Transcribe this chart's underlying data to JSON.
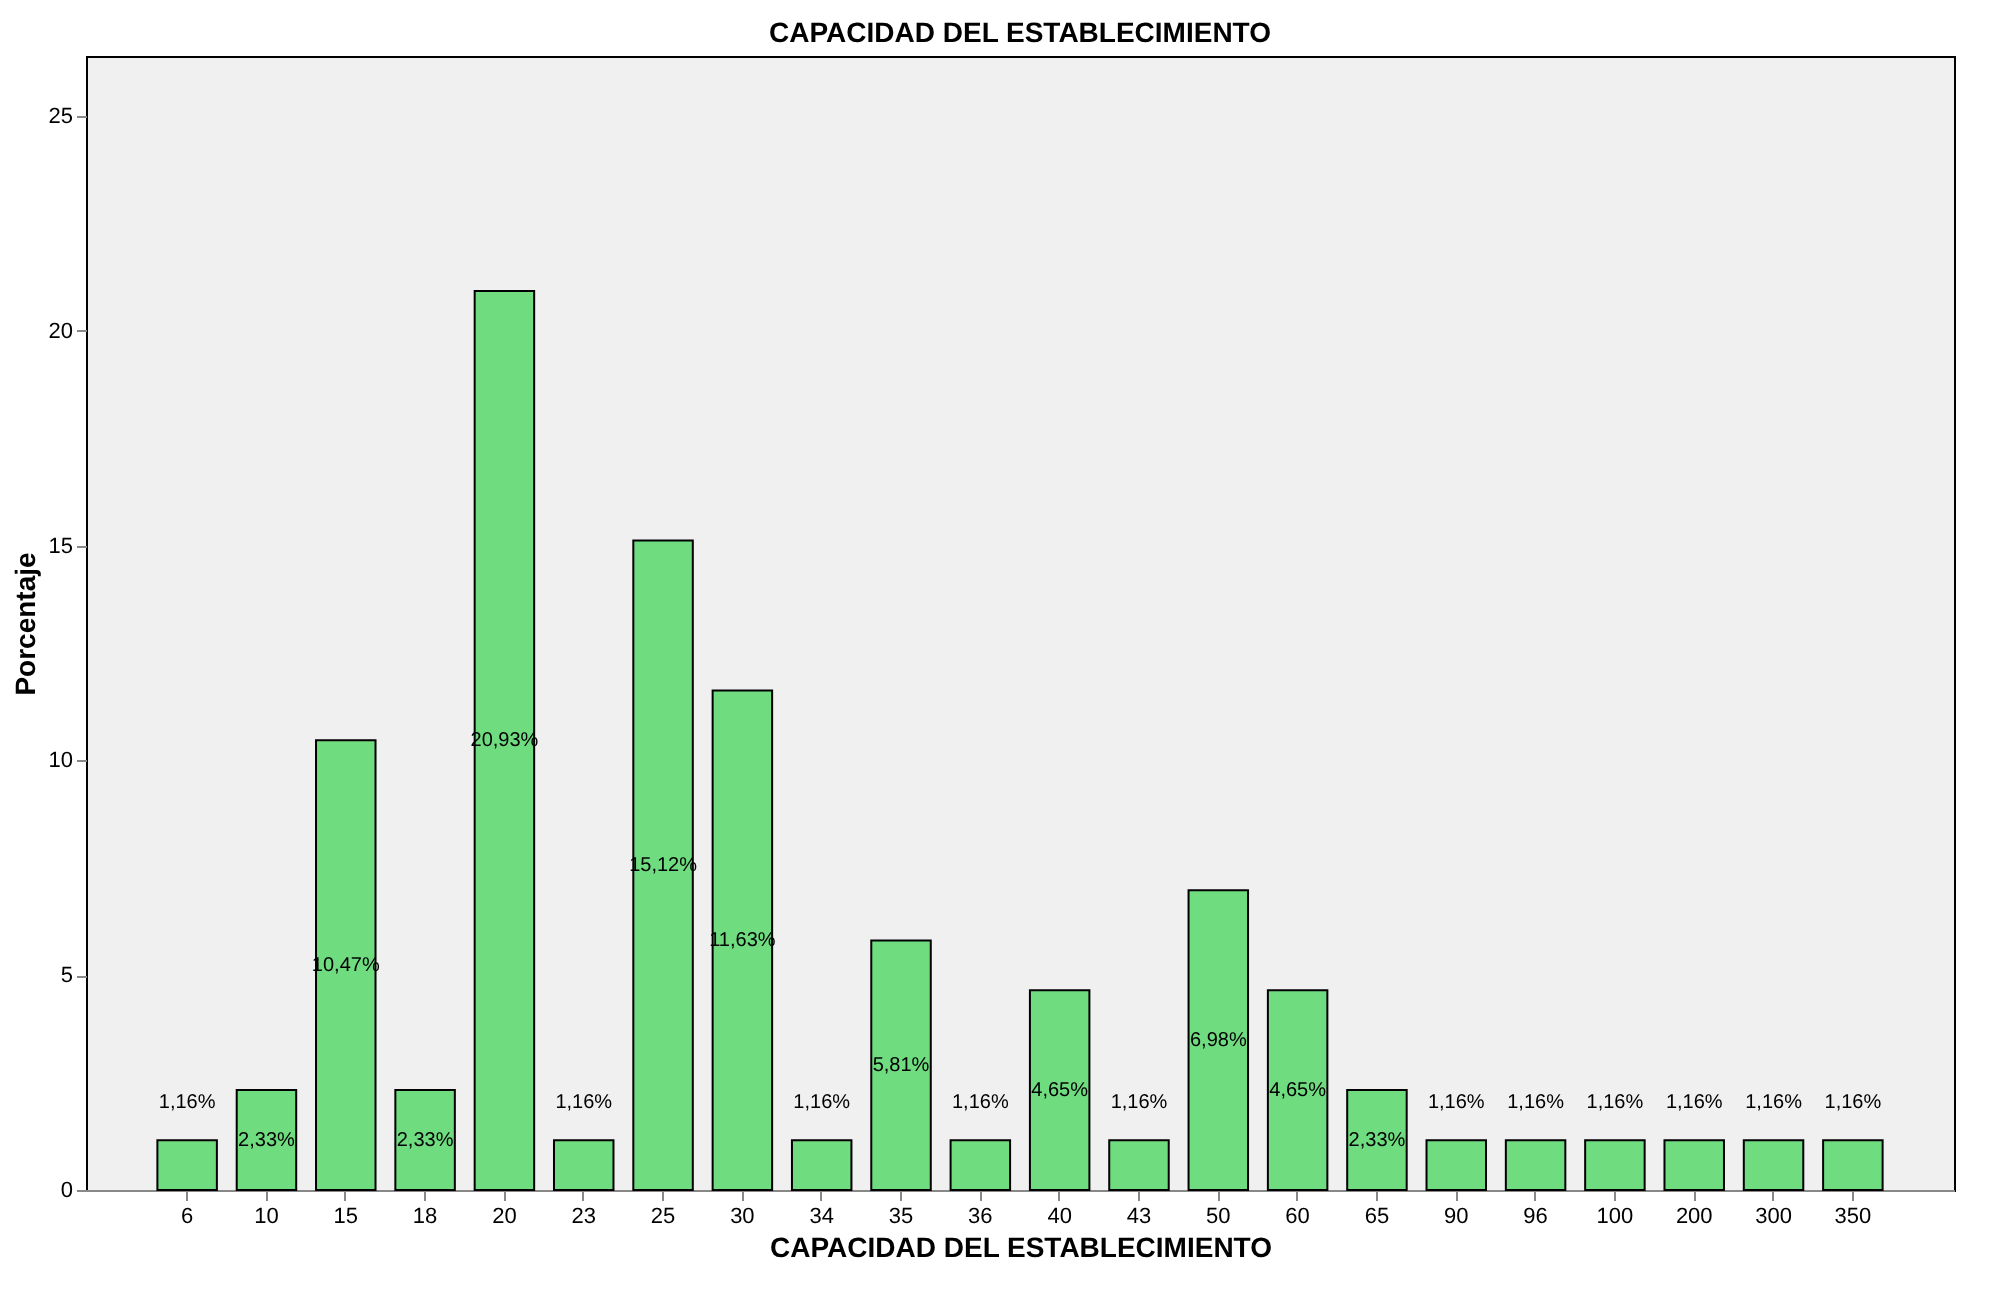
{
  "chart_data": {
    "type": "bar",
    "title": "CAPACIDAD DEL ESTABLECIMIENTO",
    "xlabel": "CAPACIDAD DEL ESTABLECIMIENTO",
    "ylabel": "Porcentaje",
    "categories": [
      "6",
      "10",
      "15",
      "18",
      "20",
      "23",
      "25",
      "30",
      "34",
      "35",
      "36",
      "40",
      "43",
      "50",
      "60",
      "65",
      "90",
      "96",
      "100",
      "200",
      "300",
      "350"
    ],
    "values": [
      1.16,
      2.33,
      10.47,
      2.33,
      20.93,
      1.16,
      15.12,
      11.63,
      1.16,
      5.81,
      1.16,
      4.65,
      1.16,
      6.98,
      4.65,
      2.33,
      1.16,
      1.16,
      1.16,
      1.16,
      1.16,
      1.16
    ],
    "value_labels": [
      "1,16%",
      "2,33%",
      "10,47%",
      "2,33%",
      "20,93%",
      "1,16%",
      "15,12%",
      "11,63%",
      "1,16%",
      "5,81%",
      "1,16%",
      "4,65%",
      "1,16%",
      "6,98%",
      "4,65%",
      "2,33%",
      "1,16%",
      "1,16%",
      "1,16%",
      "1,16%",
      "1,16%",
      "1,16%"
    ],
    "color": "#6fdc80",
    "ylim": [
      0,
      26.4
    ],
    "yticks": [
      0,
      5,
      10,
      15,
      20,
      25
    ],
    "grid": false
  }
}
